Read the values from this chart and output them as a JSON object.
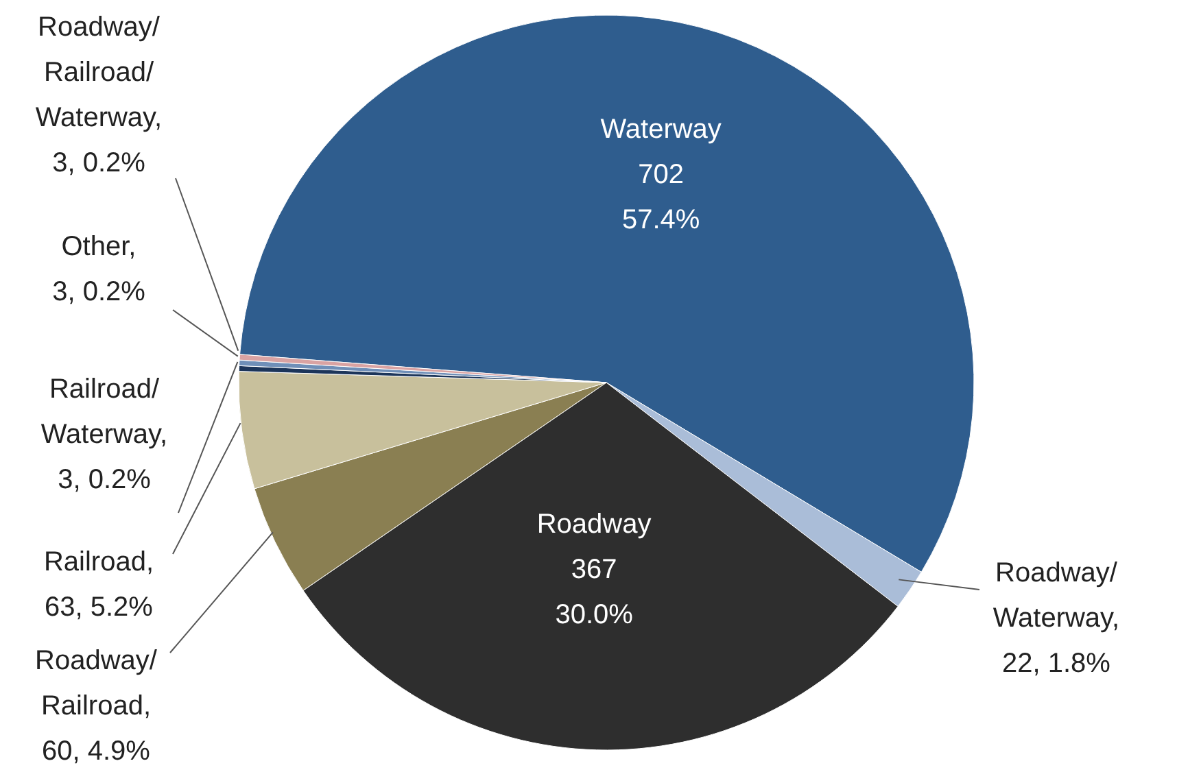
{
  "chart_data": {
    "type": "pie",
    "categories": [
      "Waterway",
      "Roadway/Waterway",
      "Roadway",
      "Roadway/Railroad",
      "Railroad",
      "Railroad/Waterway",
      "Other",
      "Roadway/Railroad/Waterway"
    ],
    "values": [
      702,
      22,
      367,
      60,
      63,
      3,
      3,
      3
    ],
    "value_labels": [
      "702\n57.4%",
      ",\n22, 1.8%",
      "367\n30.0%",
      ",\n60, 4.9%",
      ",\n63, 5.2%",
      ",\n3, 0.2%",
      ",\n3, 0.2%",
      ",\n3, 0.2%"
    ],
    "colors": [
      "#2f5d8e",
      "#aabdd8",
      "#2e2e2e",
      "#8a7f52",
      "#c8c09c",
      "#1c355a",
      "#6f8fb8",
      "#d9a3a3"
    ],
    "legend": false
  }
}
